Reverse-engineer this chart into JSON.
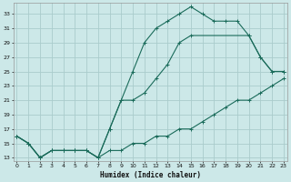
{
  "xlabel": "Humidex (Indice chaleur)",
  "bg_color": "#cce8e8",
  "grid_color": "#aacccc",
  "line_color": "#1a6b5a",
  "curve_a_x": [
    0,
    1,
    2,
    3,
    4,
    5,
    6,
    7,
    8,
    9,
    10,
    11,
    12,
    13,
    14,
    15,
    16,
    17,
    18,
    19,
    20,
    21,
    22,
    23
  ],
  "curve_a_y": [
    16,
    15,
    13,
    14,
    14,
    14,
    14,
    13,
    17,
    21,
    25,
    29,
    31,
    32,
    33,
    34,
    33,
    32,
    32,
    32,
    30,
    27,
    25,
    25
  ],
  "curve_b_x": [
    0,
    1,
    2,
    3,
    4,
    5,
    6,
    7,
    8,
    9,
    10,
    11,
    12,
    13,
    14,
    15,
    20,
    21,
    22,
    23
  ],
  "curve_b_y": [
    16,
    15,
    13,
    14,
    14,
    14,
    14,
    13,
    17,
    21,
    21,
    22,
    24,
    26,
    29,
    30,
    30,
    27,
    25,
    25
  ],
  "curve_c_x": [
    0,
    1,
    2,
    3,
    4,
    5,
    6,
    7,
    8,
    9,
    10,
    11,
    12,
    13,
    14,
    15,
    16,
    17,
    18,
    19,
    20,
    21,
    22,
    23
  ],
  "curve_c_y": [
    16,
    15,
    13,
    14,
    14,
    14,
    14,
    13,
    14,
    14,
    15,
    15,
    16,
    16,
    17,
    17,
    18,
    19,
    20,
    21,
    21,
    22,
    23,
    24
  ],
  "ylim": [
    12.5,
    34.5
  ],
  "xlim": [
    -0.3,
    23.3
  ],
  "yticks": [
    13,
    15,
    17,
    19,
    21,
    23,
    25,
    27,
    29,
    31,
    33
  ],
  "xticks": [
    0,
    1,
    2,
    3,
    4,
    5,
    6,
    7,
    8,
    9,
    10,
    11,
    12,
    13,
    14,
    15,
    16,
    17,
    18,
    19,
    20,
    21,
    22,
    23
  ]
}
